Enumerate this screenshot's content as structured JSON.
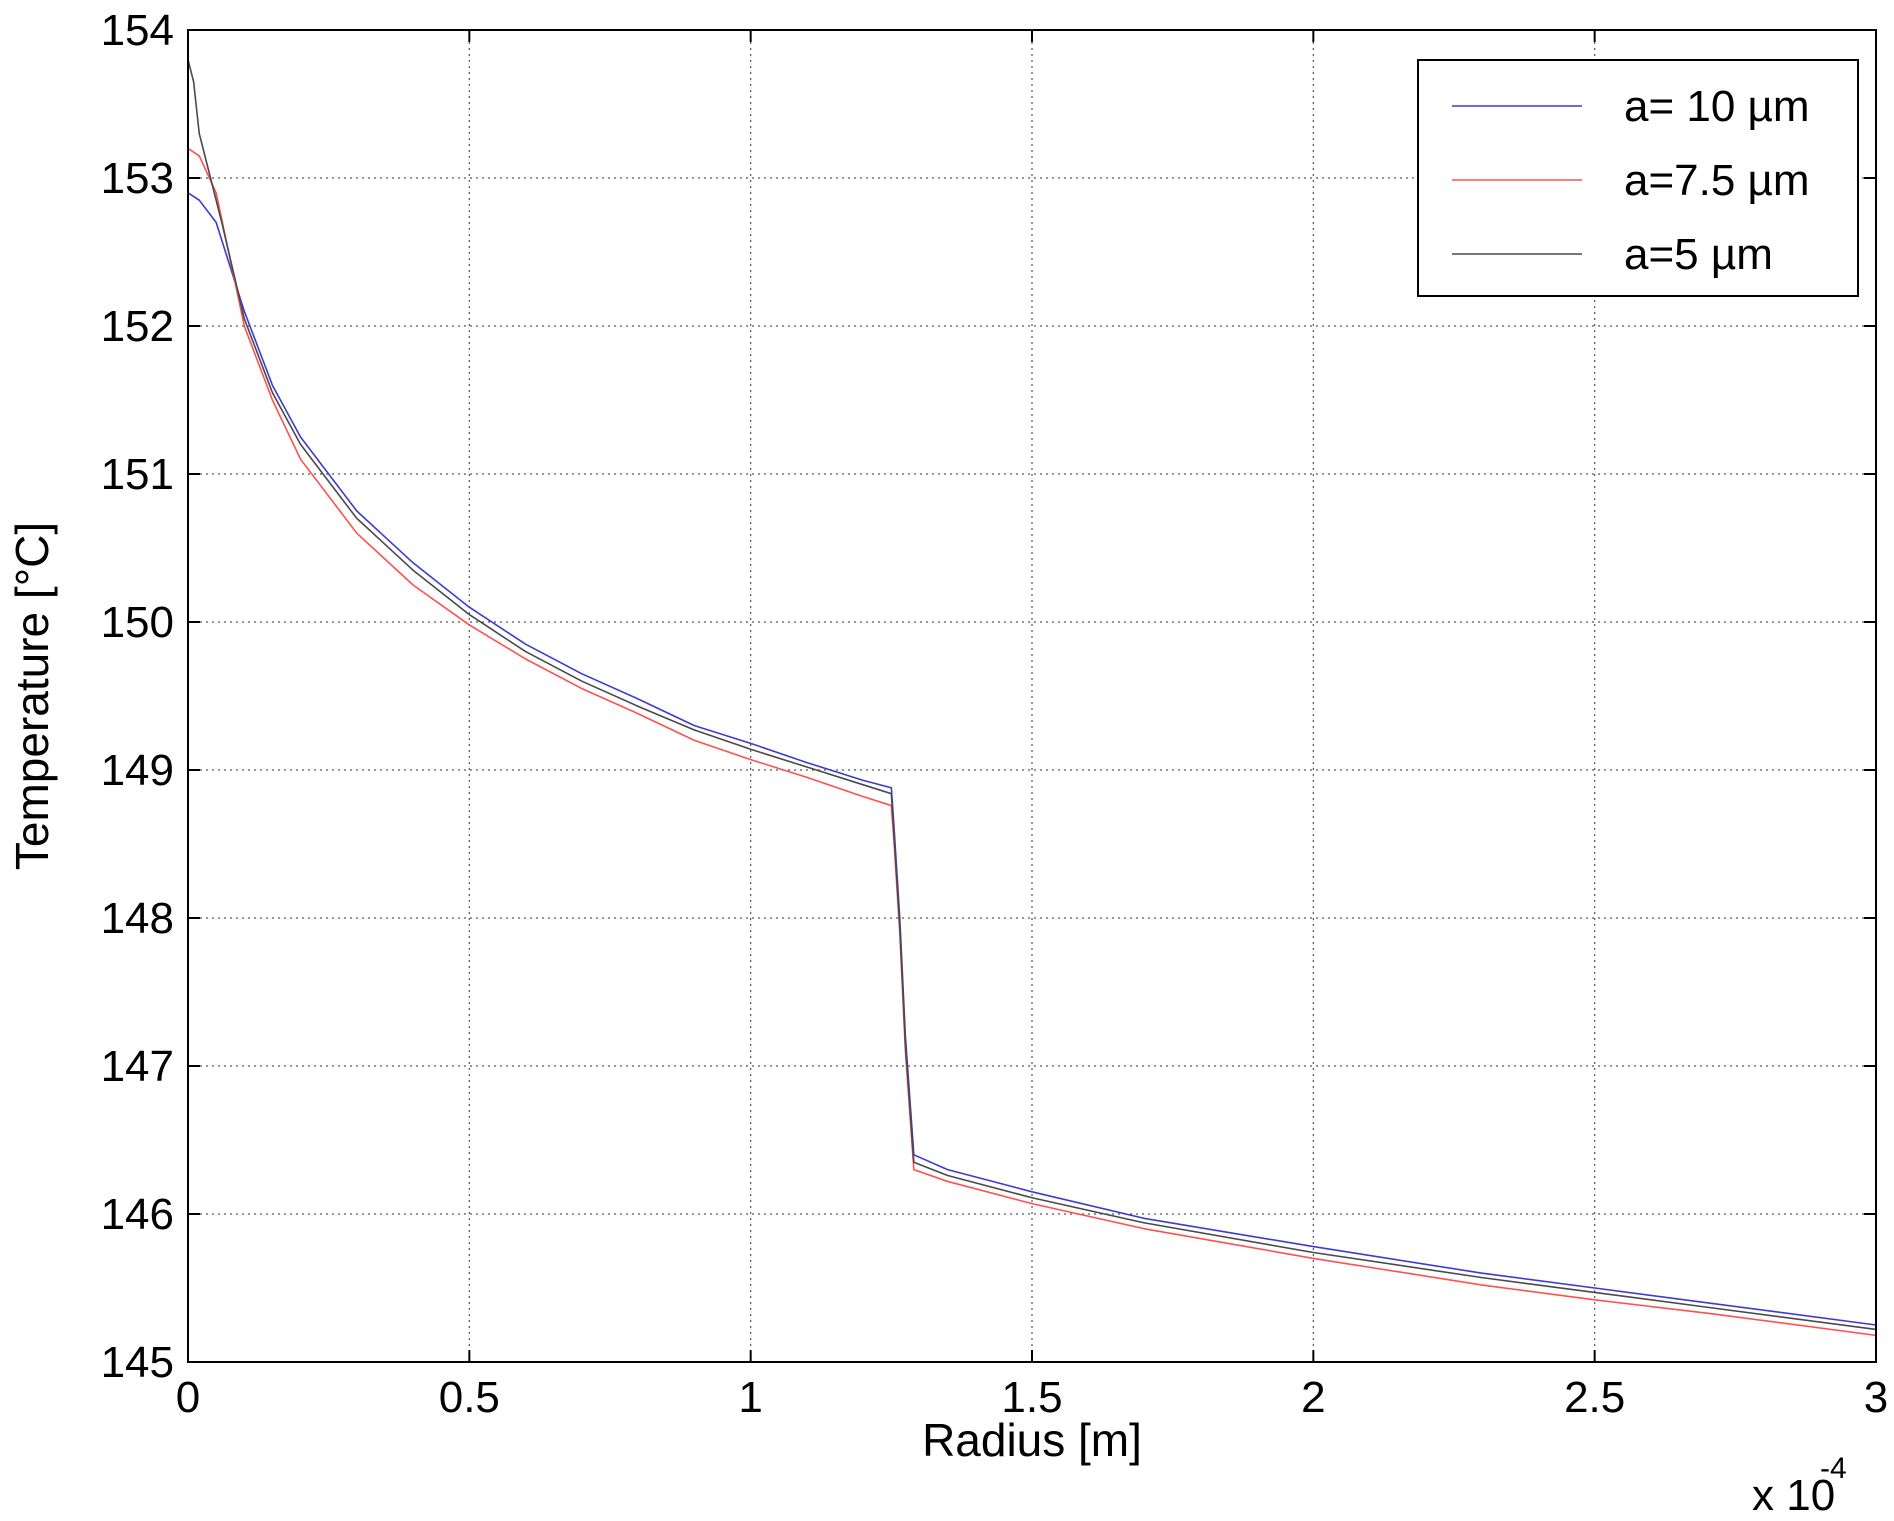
{
  "chart_data": {
    "type": "line",
    "xlabel": "Radius [m]",
    "ylabel": "Temperature [°C]",
    "x_multiplier": "x 10",
    "x_multiplier_exponent": "-4",
    "xlim": [
      0,
      3
    ],
    "ylim": [
      145,
      154
    ],
    "x_scale_factor": 0.0001,
    "xticks": [
      0,
      0.5,
      1,
      1.5,
      2,
      2.5,
      3
    ],
    "xtick_labels": [
      "0",
      "0.5",
      "1",
      "1.5",
      "2",
      "2.5",
      "3"
    ],
    "yticks": [
      145,
      146,
      147,
      148,
      149,
      150,
      151,
      152,
      153,
      154
    ],
    "ytick_labels": [
      "145",
      "146",
      "147",
      "148",
      "149",
      "150",
      "151",
      "152",
      "153",
      "154"
    ],
    "grid": true,
    "grid_style": "dotted",
    "legend_position": "top-right",
    "series": [
      {
        "name": "a= 10 µm",
        "color": "#3b3bd6",
        "x": [
          0,
          0.02,
          0.05,
          0.1,
          0.15,
          0.2,
          0.3,
          0.4,
          0.5,
          0.6,
          0.7,
          0.8,
          0.9,
          1.0,
          1.1,
          1.2,
          1.25,
          1.255,
          1.265,
          1.275,
          1.29,
          1.35,
          1.5,
          1.7,
          2.0,
          2.3,
          2.5,
          2.7,
          3.0
        ],
        "y": [
          152.9,
          152.85,
          152.7,
          152.1,
          151.6,
          151.25,
          150.75,
          150.4,
          150.1,
          149.85,
          149.65,
          149.48,
          149.3,
          149.18,
          149.05,
          148.93,
          148.88,
          148.6,
          148.0,
          147.2,
          146.4,
          146.3,
          146.15,
          145.97,
          145.78,
          145.6,
          145.5,
          145.4,
          145.25
        ]
      },
      {
        "name": "a=7.5 µm",
        "color": "#ff5050",
        "x": [
          0,
          0.02,
          0.05,
          0.1,
          0.15,
          0.2,
          0.3,
          0.4,
          0.5,
          0.6,
          0.7,
          0.8,
          0.9,
          1.0,
          1.1,
          1.2,
          1.25,
          1.255,
          1.265,
          1.275,
          1.29,
          1.35,
          1.5,
          1.7,
          2.0,
          2.3,
          2.5,
          2.7,
          3.0
        ],
        "y": [
          153.2,
          153.15,
          152.9,
          152.0,
          151.5,
          151.1,
          150.6,
          150.25,
          149.98,
          149.75,
          149.55,
          149.38,
          149.2,
          149.07,
          148.95,
          148.82,
          148.76,
          148.5,
          147.9,
          147.1,
          146.3,
          146.22,
          146.07,
          145.9,
          145.7,
          145.52,
          145.42,
          145.33,
          145.18
        ]
      },
      {
        "name": "a=5 µm",
        "color": "#4a4a4a",
        "x": [
          0,
          0.01,
          0.02,
          0.04,
          0.06,
          0.1,
          0.15,
          0.2,
          0.3,
          0.4,
          0.5,
          0.6,
          0.7,
          0.8,
          0.9,
          1.0,
          1.1,
          1.2,
          1.25,
          1.255,
          1.265,
          1.275,
          1.29,
          1.35,
          1.5,
          1.7,
          2.0,
          2.3,
          2.5,
          2.7,
          3.0
        ],
        "y": [
          153.8,
          153.65,
          153.3,
          153.0,
          152.7,
          152.05,
          151.55,
          151.2,
          150.7,
          150.35,
          150.05,
          149.8,
          149.6,
          149.43,
          149.27,
          149.14,
          149.02,
          148.9,
          148.84,
          148.55,
          147.95,
          147.15,
          146.35,
          146.26,
          146.11,
          145.94,
          145.74,
          145.57,
          145.47,
          145.37,
          145.22
        ]
      }
    ]
  }
}
